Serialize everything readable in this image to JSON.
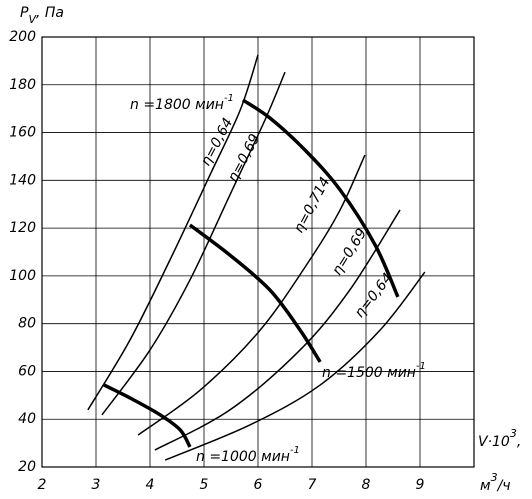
{
  "chart_data": {
    "type": "line",
    "y_label": {
      "main": "P",
      "sub": "V",
      "rest": ", Па"
    },
    "x_label_line1": {
      "main": "V·10",
      "sup": "3",
      "rest": ","
    },
    "x_label_line2": {
      "main": "м",
      "sup": "3",
      "rest": "/ч"
    },
    "xlim": [
      2,
      10
    ],
    "ylim": [
      20,
      200
    ],
    "xticks": [
      2,
      3,
      4,
      5,
      6,
      7,
      8,
      9
    ],
    "yticks": [
      20,
      40,
      60,
      80,
      100,
      120,
      140,
      160,
      180,
      200
    ],
    "grid": true,
    "series": [
      {
        "name": "η=0,64",
        "color": "#000000",
        "width": 1.5,
        "x": [
          2.85,
          3.63,
          4.37,
          5.11,
          5.67,
          6.0
        ],
        "values": [
          43.9,
          73.2,
          106.7,
          142.2,
          169.4,
          192.5
        ]
      },
      {
        "name": "η=0,69",
        "color": "#000000",
        "width": 1.5,
        "x": [
          3.11,
          4.0,
          4.74,
          5.48,
          6.13,
          6.5
        ],
        "values": [
          41.8,
          69.0,
          98.3,
          133.9,
          165.3,
          185.3
        ]
      },
      {
        "name": "η=0,714",
        "color": "#000000",
        "width": 1.5,
        "x": [
          3.78,
          4.93,
          6.04,
          6.96,
          7.52,
          7.98
        ],
        "values": [
          33.4,
          52.2,
          77.3,
          106.7,
          127.6,
          150.6
        ]
      },
      {
        "name": "η=0,69",
        "color": "#000000",
        "width": 1.5,
        "x": [
          4.09,
          5.48,
          6.78,
          7.7,
          8.63
        ],
        "values": [
          27.1,
          43.9,
          69.0,
          94.1,
          127.6
        ]
      },
      {
        "name": "η=0,64",
        "color": "#000000",
        "width": 1.5,
        "x": [
          4.28,
          5.85,
          7.15,
          8.26,
          9.09
        ],
        "values": [
          22.9,
          37.6,
          54.3,
          77.3,
          101.6
        ]
      },
      {
        "name": "n =1800 мин",
        "name_sup": "-1",
        "color": "#000000",
        "width": 3.5,
        "x": [
          5.72,
          6.22,
          6.87,
          7.52,
          8.17,
          8.59
        ],
        "values": [
          173.6,
          166.1,
          152.7,
          136.0,
          112.9,
          91.2
        ]
      },
      {
        "name": "n =1500 мин",
        "name_sup": "-1",
        "color": "#000000",
        "width": 3.5,
        "x": [
          4.74,
          5.48,
          6.22,
          6.78,
          7.15
        ],
        "values": [
          121.3,
          108.7,
          94.1,
          77.3,
          64.0
        ]
      },
      {
        "name": "n =1000 мин",
        "name_sup": "-1",
        "color": "#000000",
        "width": 3.5,
        "x": [
          3.15,
          3.63,
          4.19,
          4.56,
          4.74
        ],
        "values": [
          54.3,
          48.9,
          41.8,
          35.5,
          28.4
        ]
      }
    ]
  }
}
